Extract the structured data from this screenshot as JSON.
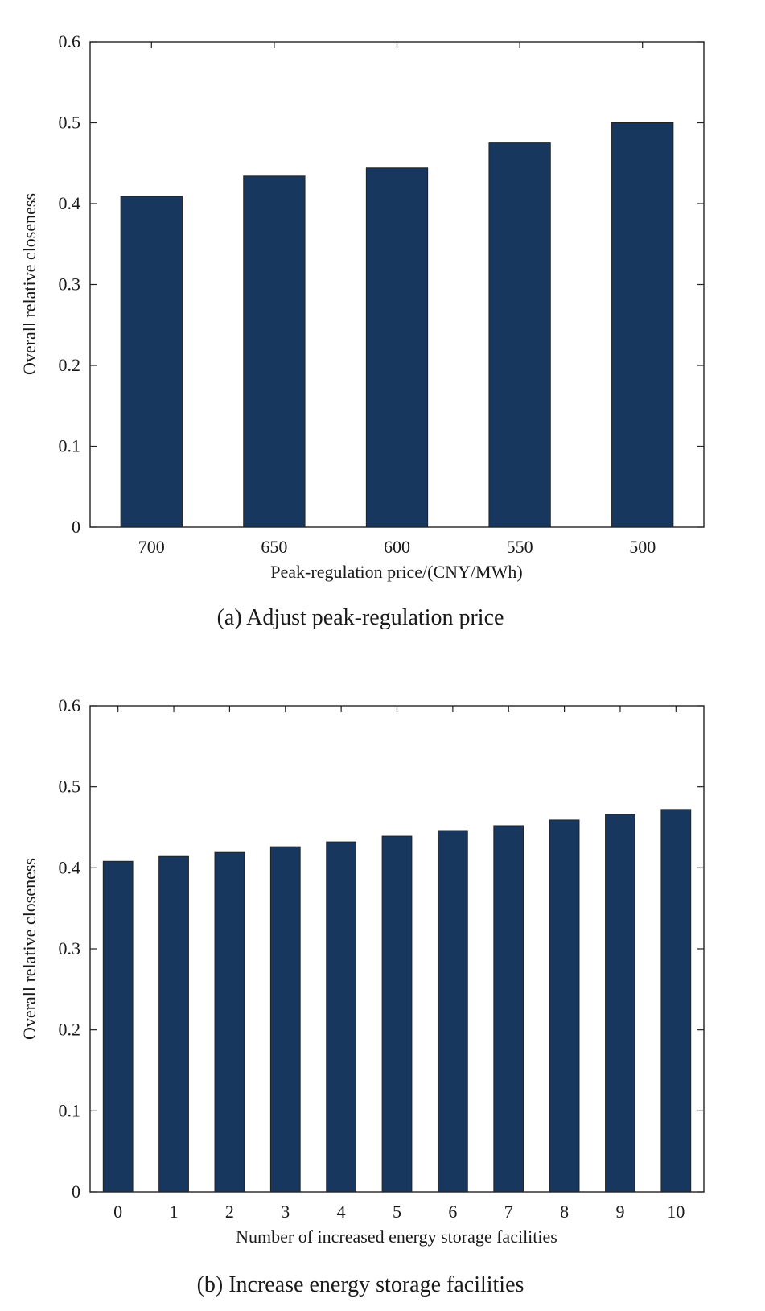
{
  "chart_data": [
    {
      "type": "bar",
      "caption": "(a) Adjust peak-regulation price",
      "xlabel": "Peak-regulation price/(CNY/MWh)",
      "ylabel": "Overall relative closeness",
      "categories": [
        "700",
        "650",
        "600",
        "550",
        "500"
      ],
      "values": [
        0.409,
        0.434,
        0.444,
        0.475,
        0.5
      ],
      "ylim": [
        0,
        0.6
      ],
      "yticks": [
        "0",
        "0.1",
        "0.2",
        "0.3",
        "0.4",
        "0.5",
        "0.6"
      ],
      "grid": false,
      "bar_color": "#17375e"
    },
    {
      "type": "bar",
      "caption": "(b) Increase energy storage facilities",
      "xlabel": "Number of increased energy storage facilities",
      "ylabel": "Overall relative closeness",
      "categories": [
        "0",
        "1",
        "2",
        "3",
        "4",
        "5",
        "6",
        "7",
        "8",
        "9",
        "10"
      ],
      "values": [
        0.408,
        0.414,
        0.419,
        0.426,
        0.432,
        0.439,
        0.446,
        0.452,
        0.459,
        0.466,
        0.472
      ],
      "ylim": [
        0,
        0.6
      ],
      "yticks": [
        "0",
        "0.1",
        "0.2",
        "0.3",
        "0.4",
        "0.5",
        "0.6"
      ],
      "grid": false,
      "bar_color": "#17375e"
    }
  ]
}
